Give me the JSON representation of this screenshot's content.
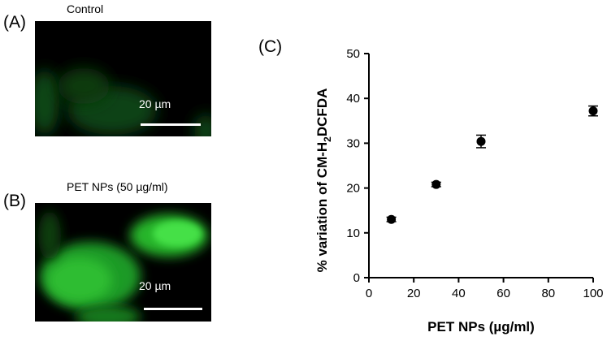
{
  "panels": {
    "a": {
      "letter": "(A)",
      "caption": "Control",
      "scale_label": "20 µm"
    },
    "b": {
      "letter": "(B)",
      "caption": "PET NPs (50 µg/ml)",
      "scale_label": "20 µm"
    },
    "c": {
      "letter": "(C)"
    }
  },
  "colors": {
    "fluorescence": "#22c522",
    "background": "#000000",
    "marker": "#000000"
  },
  "chart_data": {
    "type": "scatter",
    "title": "",
    "xlabel": "PET NPs (µg/ml)",
    "ylabel_prefix": "% variation of CM-H",
    "ylabel_sub": "2",
    "ylabel_suffix": "DCFDA",
    "xlim": [
      0,
      100
    ],
    "ylim": [
      0,
      50
    ],
    "xticks": [
      "0",
      "20",
      "40",
      "60",
      "80",
      "100"
    ],
    "yticks": [
      "0",
      "10",
      "20",
      "30",
      "40",
      "50"
    ],
    "grid": false,
    "series": [
      {
        "x": [
          10,
          30,
          50,
          100
        ],
        "y": [
          13,
          20.8,
          30.4,
          37.2
        ],
        "error": [
          0.5,
          0.5,
          1.4,
          1.1
        ]
      }
    ]
  }
}
